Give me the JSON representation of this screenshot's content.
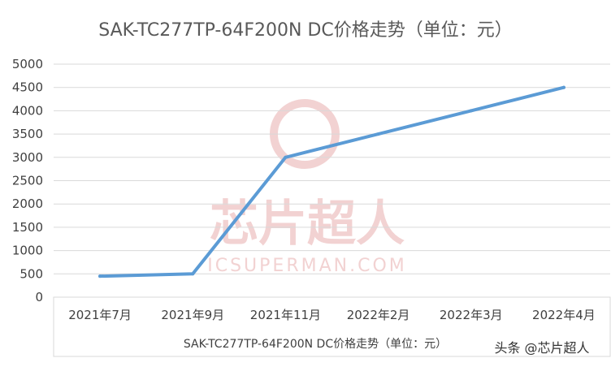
{
  "chart_data": {
    "type": "line",
    "title": "SAK-TC277TP-64F200N DC价格走势（单位：元）",
    "xlabel": "SAK-TC277TP-64F200N DC价格走势（单位：元）",
    "ylabel": "",
    "categories": [
      "2021年7月",
      "2021年9月",
      "2021年11月",
      "2022年2月",
      "2022年3月",
      "2022年4月"
    ],
    "series": [
      {
        "values": [
          450,
          500,
          3000,
          3500,
          4000,
          4500
        ]
      }
    ],
    "yticks": [
      "0",
      "500",
      "1000",
      "1500",
      "2000",
      "2500",
      "3000",
      "3500",
      "4000",
      "4500",
      "5000"
    ],
    "ylim": [
      0,
      5000
    ],
    "grid": true,
    "legend": "none",
    "line_color": "#5B9BD5",
    "grid_color": "#D9D9D9"
  },
  "watermark": {
    "text": "芯片超人",
    "subtext": "ICSUPERMAN.COM",
    "color": "#F2D2D2"
  },
  "credit": "头条 @芯片超人"
}
